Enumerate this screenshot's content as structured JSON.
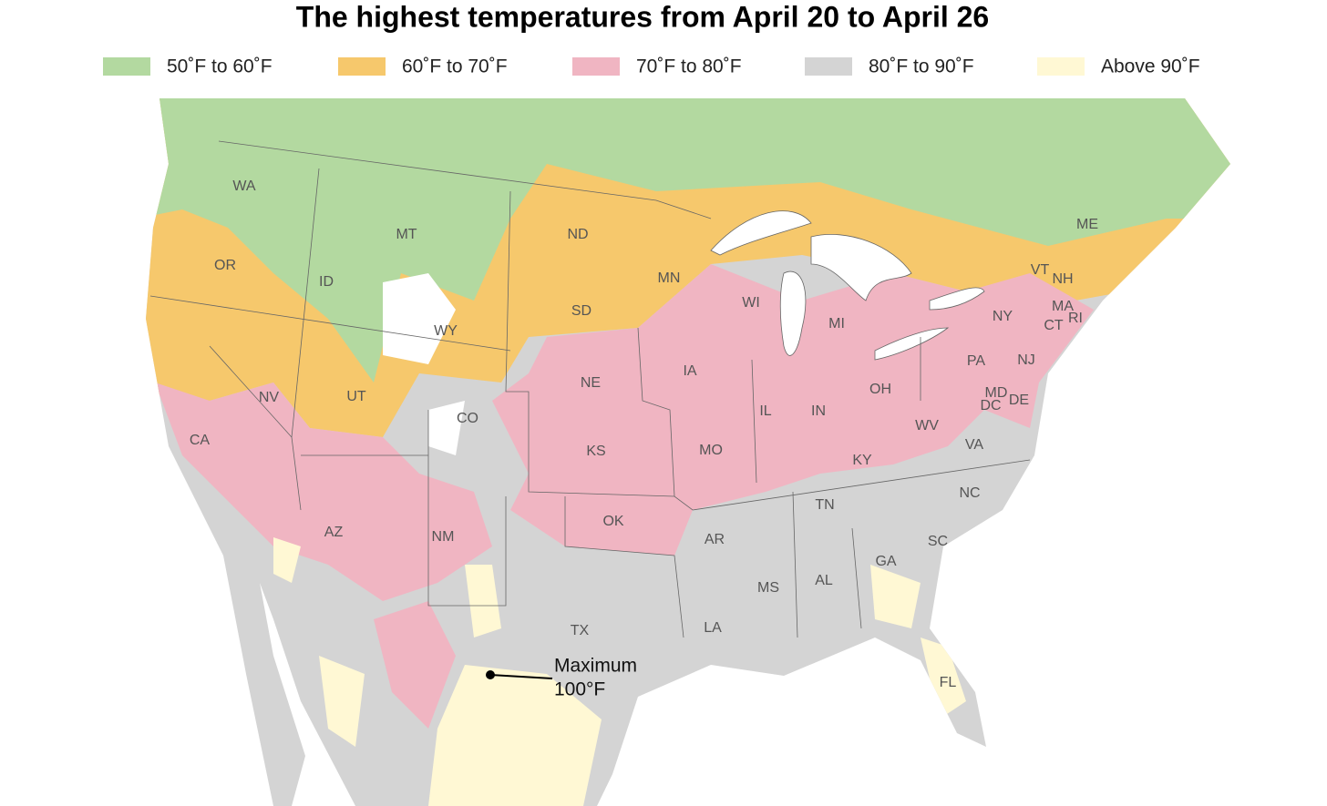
{
  "title": "The highest temperatures from April 20 to April 26",
  "legend": [
    {
      "label": "50˚F to 60˚F",
      "color": "#b3d9a0"
    },
    {
      "label": "60˚F to 70˚F",
      "color": "#f6c86c"
    },
    {
      "label": "70˚F to 80˚F",
      "color": "#f0b5c2"
    },
    {
      "label": "80˚F to 90˚F",
      "color": "#d4d4d4"
    },
    {
      "label": "Above 90˚F",
      "color": "#fff8d4"
    }
  ],
  "state_labels": [
    "WA",
    "MT",
    "ND",
    "ME",
    "OR",
    "ID",
    "MN",
    "VT",
    "NH",
    "WI",
    "SD",
    "WY",
    "MI",
    "NY",
    "MA",
    "CT",
    "RI",
    "NE",
    "IA",
    "PA",
    "NJ",
    "NV",
    "UT",
    "CO",
    "IL",
    "IN",
    "OH",
    "MD",
    "DE",
    "DC",
    "CA",
    "KS",
    "MO",
    "KY",
    "WV",
    "VA",
    "NC",
    "TN",
    "OK",
    "AR",
    "AZ",
    "NM",
    "SC",
    "GA",
    "MS",
    "AL",
    "TX",
    "LA",
    "FL"
  ],
  "annotation": {
    "lines": [
      "Maximum",
      "100°F"
    ]
  }
}
